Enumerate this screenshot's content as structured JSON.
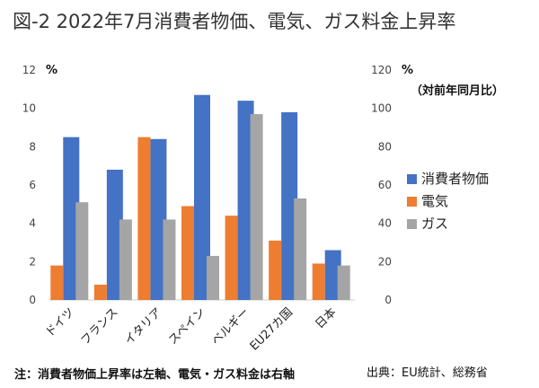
{
  "chart_data": {
    "type": "bar",
    "title": "図-2 2022年7月消費者物価、電気、ガス料金上昇率",
    "categories": [
      "ドイツ",
      "フランス",
      "イタリア",
      "スペイン",
      "ベルギー",
      "EU27カ国",
      "日本"
    ],
    "left_axis": {
      "unit": "%",
      "ylim": [
        0,
        12
      ],
      "ticks": [
        0,
        2,
        4,
        6,
        8,
        10,
        12
      ]
    },
    "right_axis": {
      "unit": "%",
      "sublabel": "（対前年同月比）",
      "ylim": [
        0,
        120
      ],
      "ticks": [
        0,
        20,
        40,
        60,
        80,
        100,
        120
      ]
    },
    "series": [
      {
        "name": "消費者物価",
        "axis": "left",
        "color": "#4472C4",
        "values": [
          8.5,
          6.8,
          8.4,
          10.7,
          10.4,
          9.8,
          2.6
        ]
      },
      {
        "name": "電気",
        "axis": "right",
        "color": "#ED7D31",
        "values": [
          18,
          8,
          85,
          49,
          44,
          31,
          19
        ]
      },
      {
        "name": "ガス",
        "axis": "right",
        "color": "#A5A5A5",
        "values": [
          51,
          42,
          42,
          23,
          97,
          53,
          18
        ]
      }
    ],
    "legend_position": "right",
    "grid": false
  },
  "footer": {
    "note": "注：消費者物価上昇率は左軸、電気・ガス料金は右軸",
    "source": "出典：EU統計、総務省"
  }
}
